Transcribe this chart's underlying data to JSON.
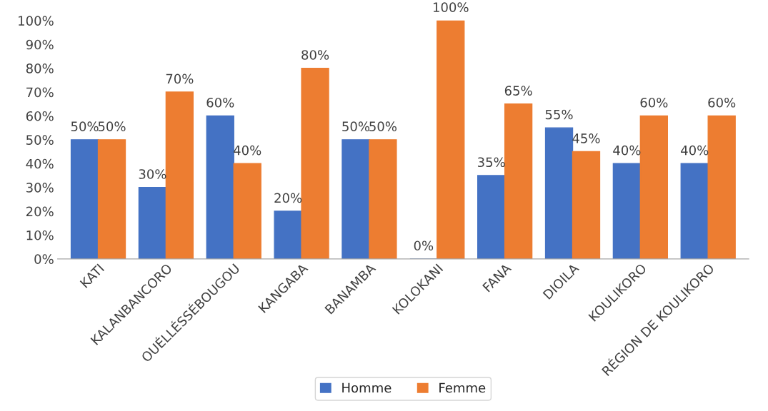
{
  "chart_data": {
    "type": "bar",
    "categories": [
      "KATI",
      "KALANBANCORO",
      "OUÉLLÉSSÉBOUGOU",
      "KANGABA",
      "BANAMBA",
      "KOLOKANI",
      "FANA",
      "DIOILA",
      "KOULIKORO",
      "RÉGION DE KOULIKORO"
    ],
    "series": [
      {
        "name": "Homme",
        "color": "#4472c4",
        "values": [
          50,
          30,
          60,
          20,
          50,
          0,
          35,
          55,
          40,
          40
        ],
        "value_labels": [
          "50%",
          "30%",
          "60%",
          "20%",
          "50%",
          "0%",
          "35%",
          "55%",
          "40%",
          "40%"
        ]
      },
      {
        "name": "Femme",
        "color": "#ed7d31",
        "values": [
          50,
          70,
          40,
          80,
          50,
          100,
          65,
          45,
          60,
          60
        ],
        "value_labels": [
          "50%",
          "70%",
          "40%",
          "80%",
          "50%",
          "100%",
          "65%",
          "45%",
          "60%",
          "60%"
        ]
      }
    ],
    "ylim": [
      0,
      100
    ],
    "yticks": [
      {
        "value": 0,
        "label": "0%"
      },
      {
        "value": 10,
        "label": "10%"
      },
      {
        "value": 20,
        "label": "20%"
      },
      {
        "value": 30,
        "label": "30%"
      },
      {
        "value": 40,
        "label": "40%"
      },
      {
        "value": 50,
        "label": "50%"
      },
      {
        "value": 60,
        "label": "60%"
      },
      {
        "value": 70,
        "label": "70%"
      },
      {
        "value": 80,
        "label": "80%"
      },
      {
        "value": 90,
        "label": "90%"
      },
      {
        "value": 100,
        "label": "100%"
      }
    ],
    "grid": false,
    "legend": "bottom"
  }
}
